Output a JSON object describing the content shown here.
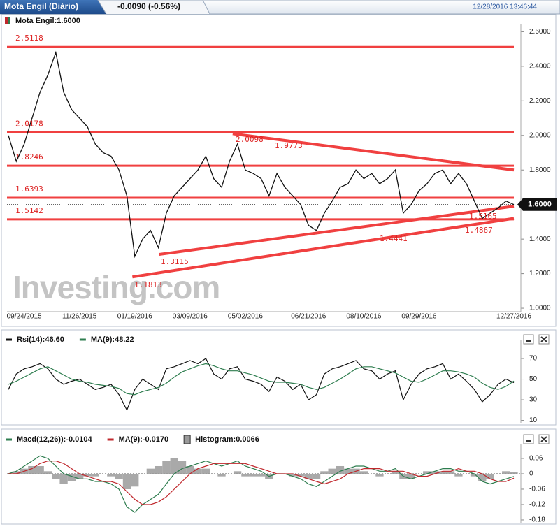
{
  "header": {
    "title": "Mota Engil (Diário)",
    "change": "-0.0090 (-0.56%)",
    "timestamp": "12/28/2016 13:46:44"
  },
  "chart_data": [
    {
      "type": "line",
      "legend": "Mota Engil:1.6000",
      "watermark": "Investing.com",
      "color": "#111111",
      "categories": [
        null,
        null,
        "09/24/2015",
        null,
        null,
        null,
        null,
        null,
        null,
        "11/26/2015",
        null,
        null,
        null,
        null,
        null,
        null,
        "01/19/2016",
        null,
        null,
        null,
        null,
        null,
        null,
        "03/09/2016",
        null,
        null,
        null,
        null,
        null,
        null,
        "05/02/2016",
        null,
        null,
        null,
        null,
        null,
        null,
        null,
        "06/21/2016",
        null,
        null,
        null,
        null,
        null,
        null,
        "08/10/2016",
        null,
        null,
        null,
        null,
        null,
        null,
        "09/29/2016",
        null,
        null,
        null,
        null,
        null,
        null,
        null,
        null,
        null,
        null,
        null,
        "12/27/2016"
      ],
      "values": [
        2.0,
        1.85,
        1.95,
        2.1,
        2.25,
        2.35,
        2.48,
        2.25,
        2.15,
        2.1,
        2.05,
        1.95,
        1.9,
        1.88,
        1.8,
        1.65,
        1.3,
        1.4,
        1.45,
        1.35,
        1.55,
        1.65,
        1.7,
        1.75,
        1.8,
        1.88,
        1.75,
        1.7,
        1.85,
        1.95,
        1.8,
        1.78,
        1.75,
        1.65,
        1.78,
        1.7,
        1.65,
        1.6,
        1.48,
        1.45,
        1.55,
        1.62,
        1.7,
        1.72,
        1.8,
        1.75,
        1.78,
        1.72,
        1.75,
        1.8,
        1.55,
        1.6,
        1.68,
        1.72,
        1.78,
        1.8,
        1.72,
        1.78,
        1.72,
        1.62,
        1.52,
        1.55,
        1.58,
        1.62,
        1.6
      ],
      "last_price": {
        "value": 1.6,
        "label": "1.6000"
      },
      "ylim": [
        0.98,
        2.63
      ],
      "yticks": [
        {
          "value": 2.6,
          "label": "2.6000"
        },
        {
          "value": 2.4,
          "label": "2.4000"
        },
        {
          "value": 2.2,
          "label": "2.2000"
        },
        {
          "value": 2.0,
          "label": "2.0000"
        },
        {
          "value": 1.8,
          "label": "1.8000"
        },
        {
          "value": 1.6,
          "label": "1.6000"
        },
        {
          "value": 1.4,
          "label": "1.4000"
        },
        {
          "value": 1.2,
          "label": "1.2000"
        },
        {
          "value": 1.0,
          "label": "1.0000"
        }
      ],
      "levels": [
        2.5118,
        2.0178,
        1.8246,
        1.6393,
        1.5142
      ],
      "level_color": "#f04040",
      "trendlines": [
        {
          "x": [
            28.4,
            64.0
          ],
          "values": [
            2.0098,
            1.8
          ]
        },
        {
          "x": [
            15.7,
            64.0
          ],
          "values": [
            1.1813,
            1.52
          ]
        },
        {
          "x": [
            19.1,
            64.0
          ],
          "values": [
            1.3115,
            1.59
          ]
        }
      ],
      "annotations": [
        2.0098,
        1.9773,
        1.3115,
        1.1813,
        1.4441,
        1.4867,
        1.5165
      ]
    },
    {
      "type": "line",
      "series": [
        {
          "name": "Rsi(14):46.60",
          "color": "#111111",
          "values": [
            40,
            55,
            60,
            62,
            65,
            60,
            50,
            45,
            48,
            50,
            45,
            40,
            42,
            45,
            35,
            20,
            40,
            50,
            45,
            40,
            60,
            62,
            65,
            68,
            65,
            70,
            55,
            50,
            60,
            62,
            50,
            48,
            45,
            38,
            52,
            48,
            40,
            45,
            30,
            35,
            55,
            60,
            62,
            65,
            68,
            60,
            58,
            50,
            55,
            58,
            30,
            45,
            55,
            60,
            62,
            65,
            50,
            55,
            48,
            40,
            28,
            35,
            45,
            50,
            46.6
          ]
        },
        {
          "name": "MA(9):48.22",
          "color": "#2e7d4f",
          "values": [
            45,
            48,
            52,
            56,
            60,
            62,
            58,
            54,
            50,
            48,
            47,
            45,
            44,
            43,
            41,
            36,
            35,
            38,
            40,
            42,
            46,
            52,
            57,
            60,
            63,
            65,
            63,
            60,
            58,
            58,
            56,
            54,
            51,
            48,
            47,
            47,
            46,
            45,
            42,
            40,
            42,
            46,
            50,
            55,
            60,
            62,
            62,
            60,
            58,
            56,
            52,
            48,
            47,
            50,
            54,
            58,
            58,
            57,
            55,
            52,
            46,
            42,
            40,
            43,
            48.22
          ]
        }
      ],
      "reference_line": 50,
      "ylim": [
        7,
        85.6
      ],
      "yticks": [
        70,
        50,
        30,
        10
      ]
    },
    {
      "type": "line",
      "series": [
        {
          "name": "Macd(12,26)):-0.0104",
          "color": "#2e7d4f",
          "values": [
            0,
            0.01,
            0.03,
            0.05,
            0.07,
            0.06,
            0.03,
            0,
            -0.01,
            -0.02,
            -0.02,
            -0.03,
            -0.03,
            -0.04,
            -0.06,
            -0.13,
            -0.15,
            -0.12,
            -0.1,
            -0.08,
            -0.04,
            0,
            0.02,
            0.03,
            0.04,
            0.05,
            0.04,
            0.03,
            0.04,
            0.05,
            0.03,
            0.02,
            0.01,
            -0.01,
            0,
            0,
            -0.01,
            -0.02,
            -0.04,
            -0.05,
            -0.03,
            -0.01,
            0.01,
            0.02,
            0.03,
            0.03,
            0.02,
            0.01,
            0.01,
            0.02,
            -0.01,
            -0.02,
            -0.01,
            0,
            0.01,
            0.02,
            0.02,
            0.01,
            0.01,
            0,
            -0.03,
            -0.04,
            -0.03,
            -0.02,
            -0.0104
          ]
        },
        {
          "name": "MA(9):-0.0170",
          "color": "#c0282d",
          "values": [
            0,
            0,
            0.01,
            0.02,
            0.04,
            0.05,
            0.05,
            0.04,
            0.02,
            0,
            -0.01,
            -0.02,
            -0.03,
            -0.03,
            -0.04,
            -0.07,
            -0.1,
            -0.12,
            -0.12,
            -0.11,
            -0.09,
            -0.06,
            -0.03,
            0,
            0.02,
            0.03,
            0.04,
            0.04,
            0.04,
            0.04,
            0.04,
            0.03,
            0.02,
            0.01,
            0,
            0,
            0,
            -0.01,
            -0.02,
            -0.03,
            -0.04,
            -0.03,
            -0.02,
            0,
            0.01,
            0.02,
            0.02,
            0.02,
            0.01,
            0.01,
            0.01,
            0,
            -0.01,
            -0.01,
            0,
            0.01,
            0.01,
            0.02,
            0.01,
            0.01,
            0,
            -0.02,
            -0.03,
            -0.03,
            -0.017
          ]
        }
      ],
      "histogram": {
        "name": "Histogram:0.0066",
        "color": "#9a9a9a",
        "values": [
          0,
          0.01,
          0.02,
          0.03,
          0.03,
          0.01,
          -0.02,
          -0.04,
          -0.03,
          -0.02,
          -0.01,
          -0.01,
          0,
          -0.01,
          -0.02,
          -0.06,
          -0.05,
          0,
          0.02,
          0.03,
          0.05,
          0.06,
          0.05,
          0.03,
          0.02,
          0.02,
          0,
          -0.01,
          0,
          0.01,
          -0.01,
          -0.01,
          -0.01,
          -0.02,
          0,
          0,
          -0.01,
          -0.01,
          -0.02,
          -0.02,
          0.01,
          0.02,
          0.03,
          0.02,
          0.02,
          0.01,
          0,
          -0.01,
          0,
          0.01,
          -0.02,
          -0.02,
          0,
          0.01,
          0.01,
          0.01,
          0.01,
          -0.01,
          0,
          -0.01,
          -0.03,
          -0.02,
          0,
          0.01,
          0.0066
        ]
      },
      "ylim": [
        -0.191,
        0.1036
      ],
      "yticks": [
        0.06,
        0,
        -0.06,
        -0.12,
        -0.18
      ]
    }
  ]
}
